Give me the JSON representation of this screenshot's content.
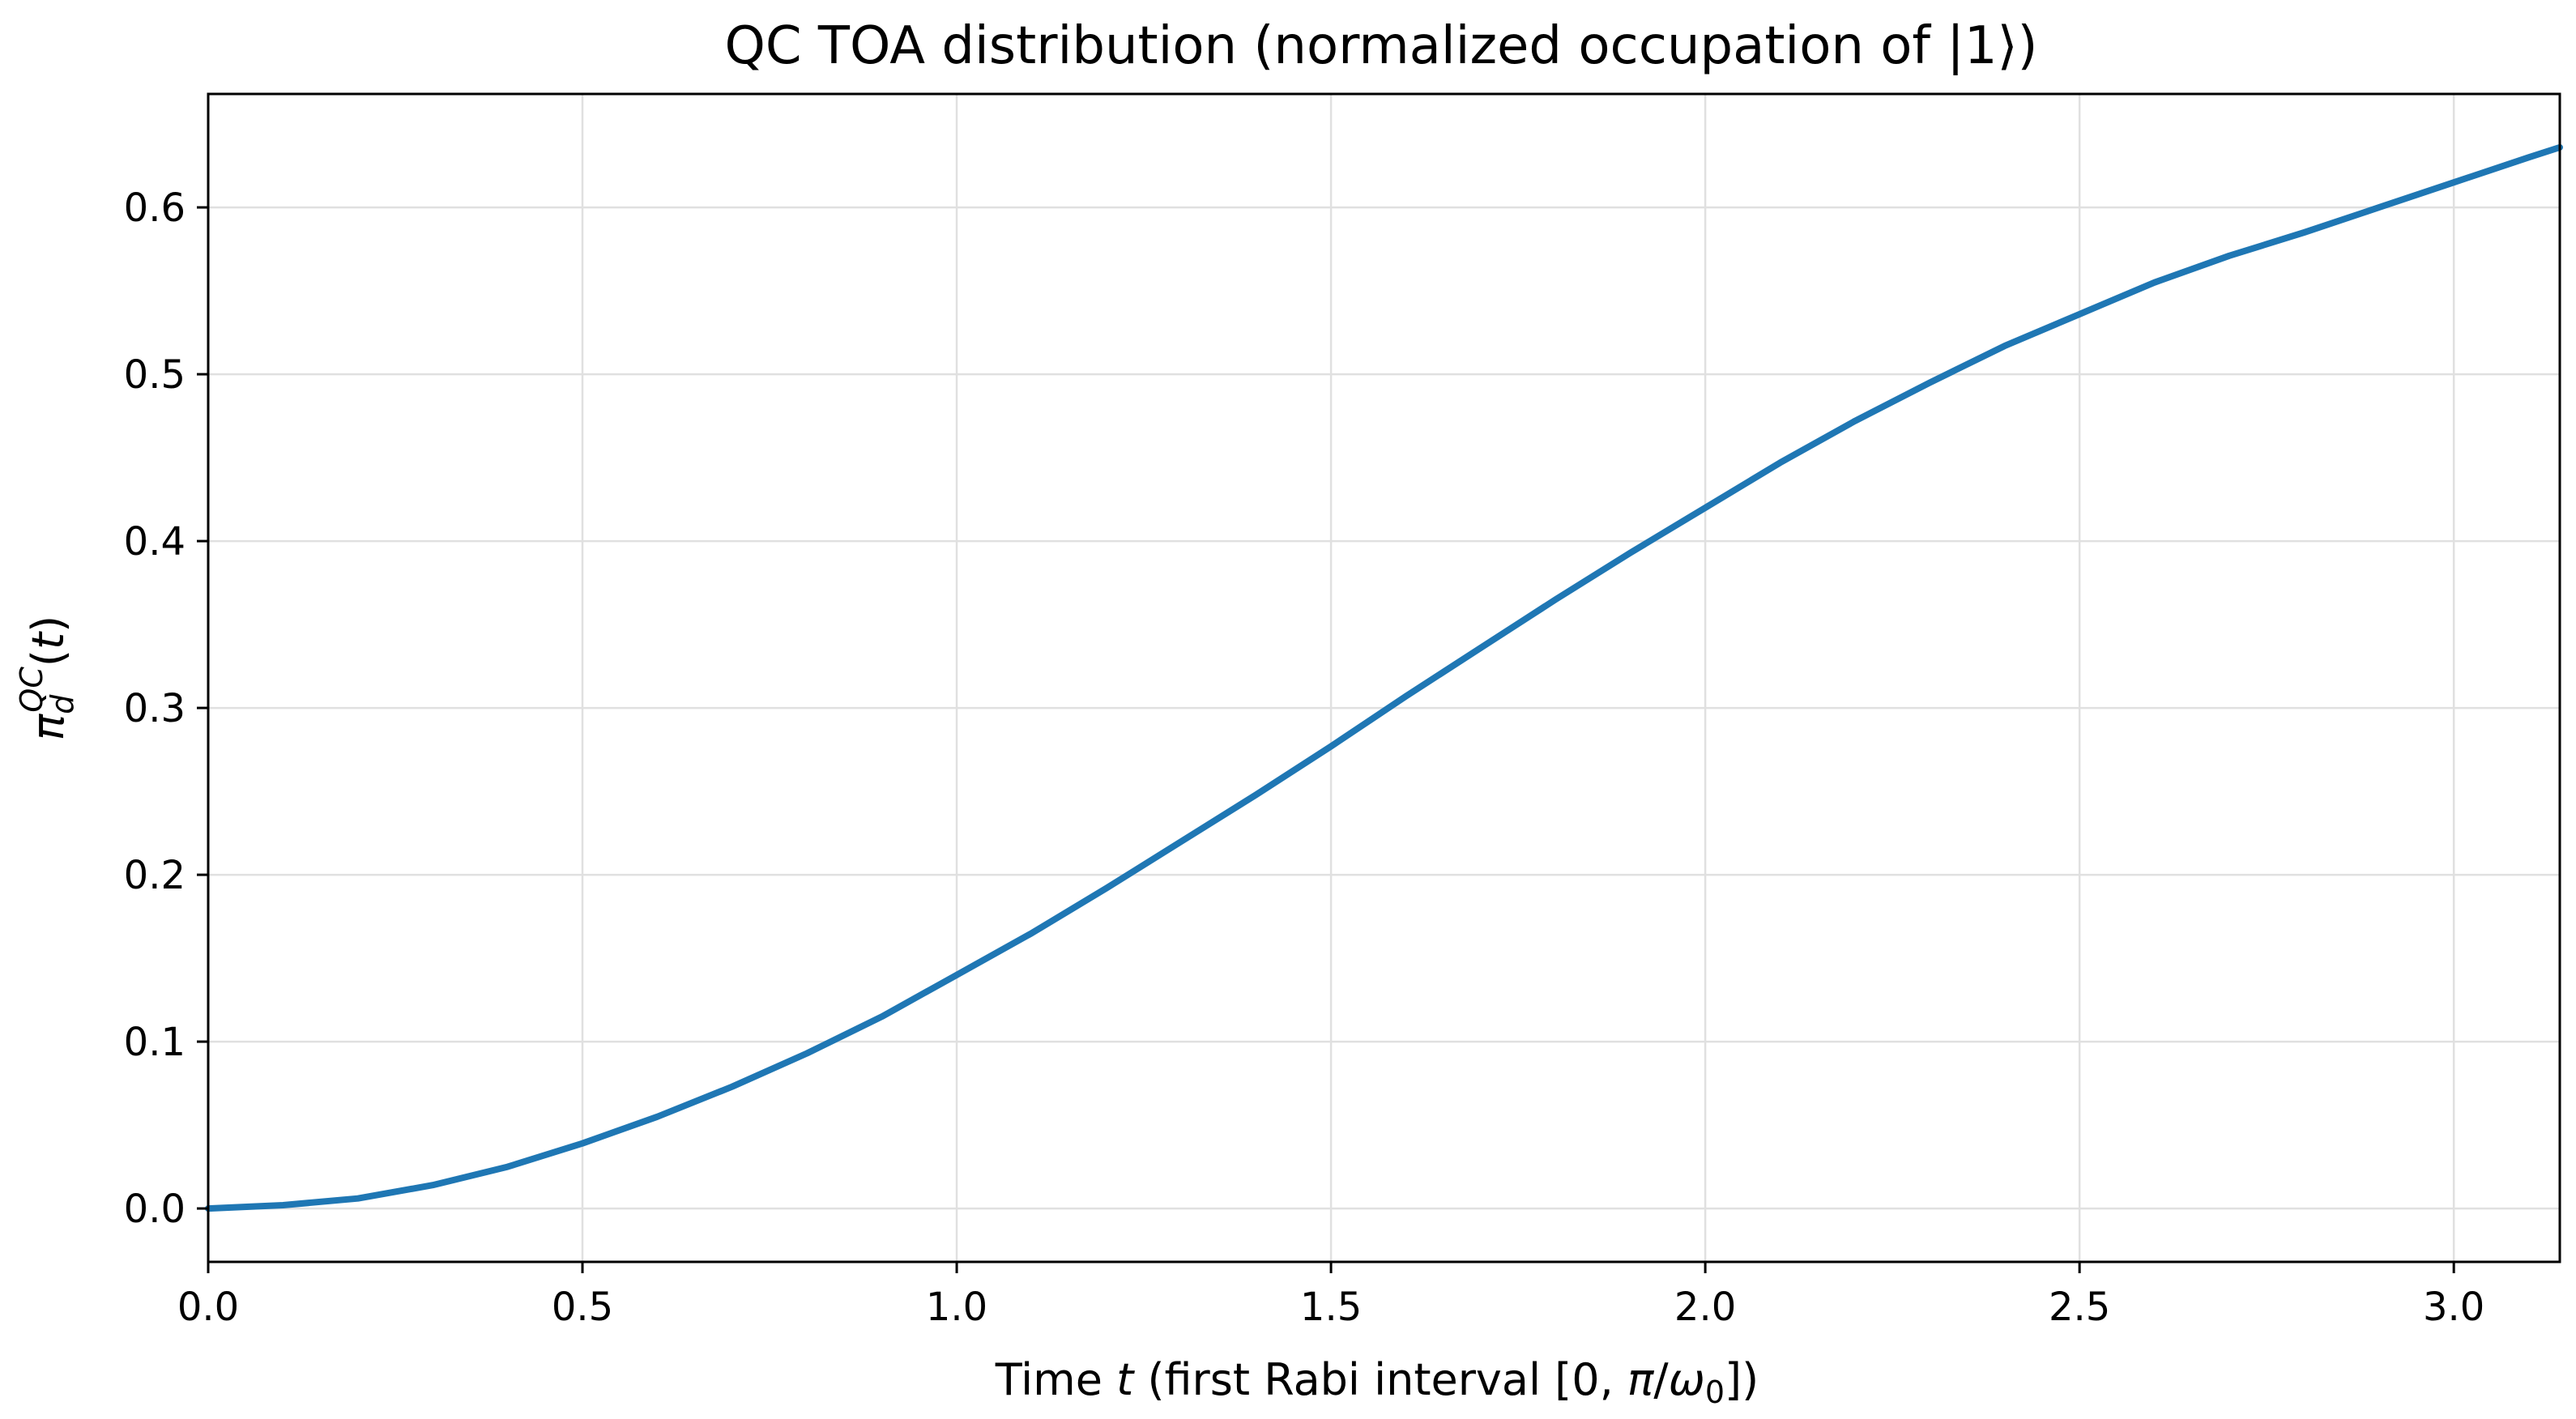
{
  "chart_data": {
    "type": "line",
    "title": "QC TOA distribution (normalized occupation of |1⟩)",
    "xlabel_parts": [
      "Time ",
      "t",
      " (first Rabi interval [0, ",
      "π",
      "/",
      "ω",
      "0",
      "])"
    ],
    "ylabel_parts": [
      "π",
      "d",
      "QC",
      "(",
      "t",
      ")"
    ],
    "xlim": [
      0,
      3.14159
    ],
    "ylim": [
      -0.032,
      0.668
    ],
    "xticks": [
      "0.0",
      "0.5",
      "1.0",
      "1.5",
      "2.0",
      "2.5",
      "3.0"
    ],
    "yticks": [
      "0.0",
      "0.1",
      "0.2",
      "0.3",
      "0.4",
      "0.5",
      "0.6"
    ],
    "grid": true,
    "series": [
      {
        "color": "#1f77b4",
        "x": [
          0,
          0.1,
          0.2,
          0.3,
          0.4,
          0.5,
          0.6,
          0.7,
          0.8,
          0.9,
          1.0,
          1.1,
          1.2,
          1.3,
          1.4,
          1.5,
          1.6,
          1.7,
          1.8,
          1.9,
          2.0,
          2.1,
          2.2,
          2.3,
          2.4,
          2.5,
          2.6,
          2.7,
          2.8,
          2.9,
          3.0,
          3.1,
          3.14159
        ],
        "y": [
          0.0,
          0.002,
          0.006,
          0.014,
          0.025,
          0.039,
          0.055,
          0.073,
          0.093,
          0.115,
          0.14,
          0.165,
          0.192,
          0.22,
          0.248,
          0.277,
          0.307,
          0.336,
          0.365,
          0.393,
          0.42,
          0.447,
          0.472,
          0.495,
          0.517,
          0.536,
          0.555,
          0.571,
          0.585,
          0.6,
          0.615,
          0.63,
          0.636
        ]
      }
    ]
  }
}
